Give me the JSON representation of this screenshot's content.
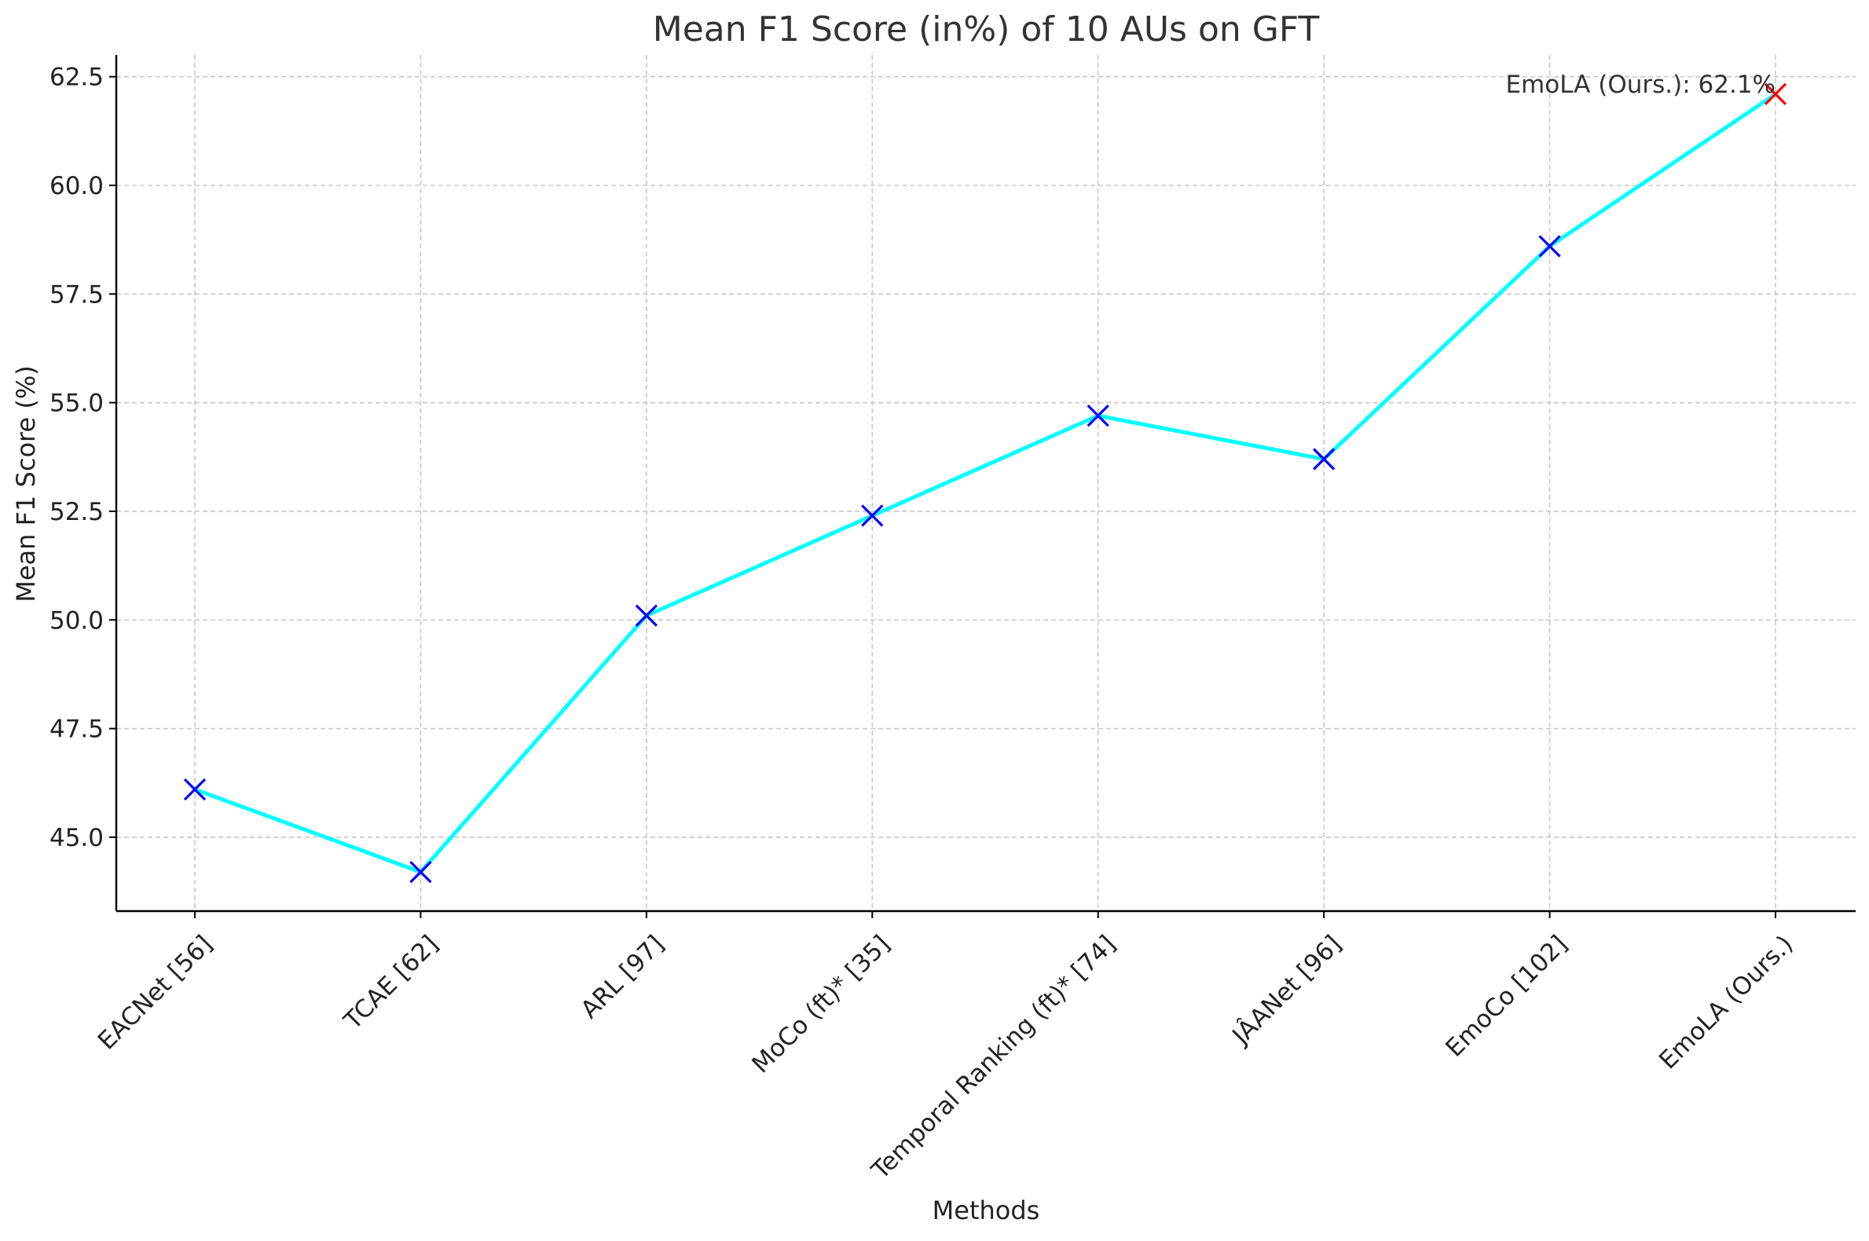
{
  "chart_data": {
    "type": "line",
    "title": "Mean F1 Score (in%) of 10 AUs on GFT",
    "xlabel": "Methods",
    "ylabel": "Mean F1 Score (%)",
    "categories": [
      "EACNet [56]",
      "TCAE [62]",
      "ARL [97]",
      "MoCo (ft)* [35]",
      "Temporal Ranking (ft)* [74]",
      "JÂANet [96]",
      "EmoCo [102]",
      "EmoLA (Ours.)"
    ],
    "series": [
      {
        "values": [
          46.1,
          44.2,
          50.1,
          52.4,
          54.7,
          53.7,
          58.6,
          62.1
        ],
        "color": "#00ffff",
        "marker": "x",
        "marker_colors": [
          "#0000ff",
          "#0000ff",
          "#0000ff",
          "#0000ff",
          "#0000ff",
          "#0000ff",
          "#0000ff",
          "#ff0000"
        ]
      }
    ],
    "ylim": [
      43.3,
      63.0
    ],
    "yticks": [
      45.0,
      47.5,
      50.0,
      52.5,
      55.0,
      57.5,
      60.0,
      62.5
    ],
    "ytick_labels": [
      "45.0",
      "47.5",
      "50.0",
      "52.5",
      "55.0",
      "57.5",
      "60.0",
      "62.5"
    ],
    "grid": true,
    "annotation": {
      "text": "EmoLA (Ours.): 62.1%",
      "category": "EmoLA (Ours.)",
      "value": 62.1
    }
  }
}
